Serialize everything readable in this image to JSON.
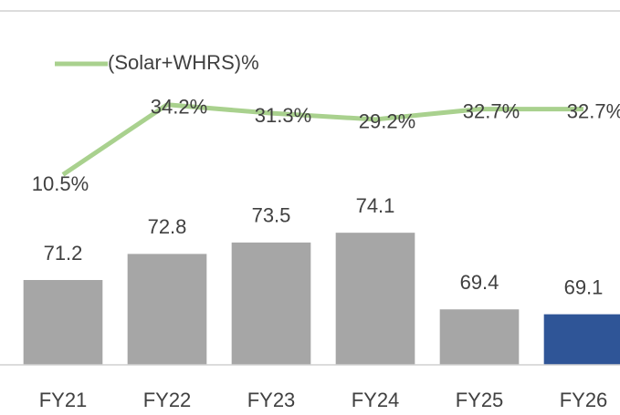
{
  "chart_data": {
    "type": "bar",
    "categories": [
      "FY21",
      "FY22",
      "FY23",
      "FY24",
      "FY25",
      "FY26"
    ],
    "ylim": [
      66,
      83
    ],
    "y2lim": [
      -54,
      40
    ],
    "series": [
      {
        "type": "bar",
        "colors": [
          "#a6a6a6",
          "#a6a6a6",
          "#a6a6a6",
          "#a6a6a6",
          "#a6a6a6",
          "#2f5597"
        ],
        "values": [
          71.2,
          72.8,
          73.5,
          74.1,
          69.4,
          69.1
        ]
      },
      {
        "type": "line",
        "name": "(Solar+WHRS)%",
        "color": "#a9d18e",
        "axis": "y2",
        "values": [
          10.5,
          34.2,
          31.3,
          29.2,
          32.7,
          32.7
        ],
        "value_labels": [
          "10.5%",
          "34.2%",
          "31.3%",
          "29.2%",
          "32.7%",
          "32.7%"
        ]
      }
    ],
    "legend": "top-left"
  }
}
